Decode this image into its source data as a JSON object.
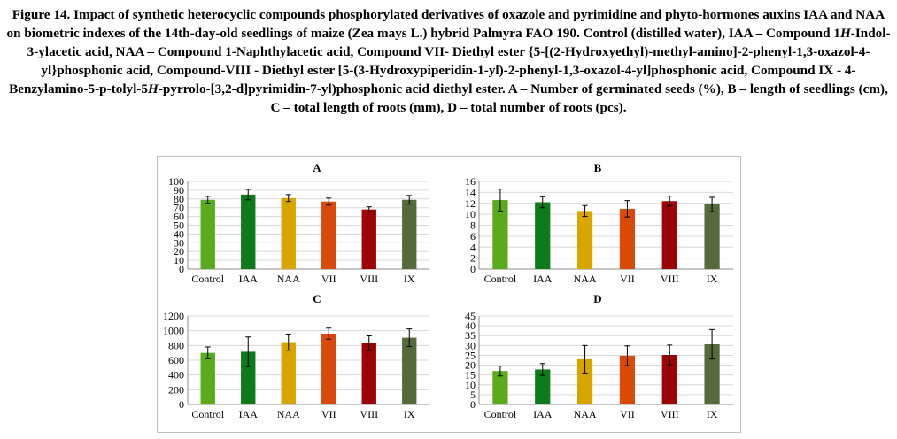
{
  "caption": {
    "p1": "Figure 14. Impact of synthetic heterocyclic compounds phosphorylated derivatives of oxazole and pyrimidine and phyto-hormones auxins IAA and NAA on biometric indexes of the 14th-day-old seedlings of maize (Zea mays L.) hybrid Palmyra FAO 190. Control (distilled water), IAA – Compound 1",
    "i1": "H",
    "p2": "-Indol-3-ylacetic acid, NAA – Compound 1-Naphthylacetic acid, Compound VII- Diethyl ester {5-[(2-Hydroxyethyl)-methyl-amino]-2-phenyl-1,3-oxazol-4-yl}phosphonic acid, Compound-VIII - Diethyl ester [5-(3-Hydroxypiperidin-1-yl)-2-phenyl-1,3-oxazol-4-yl]phosphonic acid, Compound IX - 4-Benzylamino-5-p-tolyl-5",
    "i2": "H",
    "p3": "-pyrrolo-[3,2-d]pyrimidin-7-yl)phosphonic acid diethyl ester. A – Number of germinated seeds (%), B – length of seedlings (cm), C – total length of roots (mm), D – total number of roots (pcs)."
  },
  "colors": [
    "#5aaa1e",
    "#0e7a1c",
    "#d8a400",
    "#d84a0a",
    "#9a0408",
    "#556b3c"
  ],
  "chart_data": [
    {
      "type": "bar",
      "title": "A",
      "categories": [
        "Control",
        "IAA",
        "NAA",
        "VII",
        "VIII",
        "IX"
      ],
      "values": [
        79,
        85,
        81,
        77,
        68,
        79
      ],
      "errors": [
        4,
        6,
        4,
        4,
        3,
        5
      ],
      "ylim": [
        0,
        100
      ],
      "yticks": [
        0,
        10,
        20,
        30,
        40,
        50,
        60,
        70,
        80,
        90,
        100
      ],
      "grid": true
    },
    {
      "type": "bar",
      "title": "B",
      "categories": [
        "Control",
        "IAA",
        "NAA",
        "VII",
        "VIII",
        "IX"
      ],
      "values": [
        12.6,
        12.2,
        10.6,
        11.0,
        12.4,
        11.8
      ],
      "errors": [
        2.0,
        1.0,
        1.0,
        1.5,
        0.9,
        1.3
      ],
      "ylim": [
        0,
        16
      ],
      "yticks": [
        0,
        2,
        4,
        6,
        8,
        10,
        12,
        14,
        16
      ],
      "grid": true
    },
    {
      "type": "bar",
      "title": "C",
      "categories": [
        "Control",
        "IAA",
        "NAA",
        "VII",
        "VIII",
        "IX"
      ],
      "values": [
        700,
        715,
        845,
        960,
        830,
        905
      ],
      "errors": [
        80,
        200,
        110,
        75,
        100,
        120
      ],
      "ylim": [
        0,
        1200
      ],
      "yticks": [
        0,
        200,
        400,
        600,
        800,
        1000,
        1200
      ],
      "grid": true
    },
    {
      "type": "bar",
      "title": "D",
      "categories": [
        "Control",
        "IAA",
        "NAA",
        "VII",
        "VIII",
        "IX"
      ],
      "values": [
        17,
        17.8,
        23,
        24.8,
        25.2,
        30.6
      ],
      "errors": [
        2.5,
        3,
        7,
        5,
        5,
        7.5
      ],
      "ylim": [
        0,
        45
      ],
      "yticks": [
        0,
        5,
        10,
        15,
        20,
        25,
        30,
        35,
        40,
        45
      ],
      "grid": true
    }
  ]
}
